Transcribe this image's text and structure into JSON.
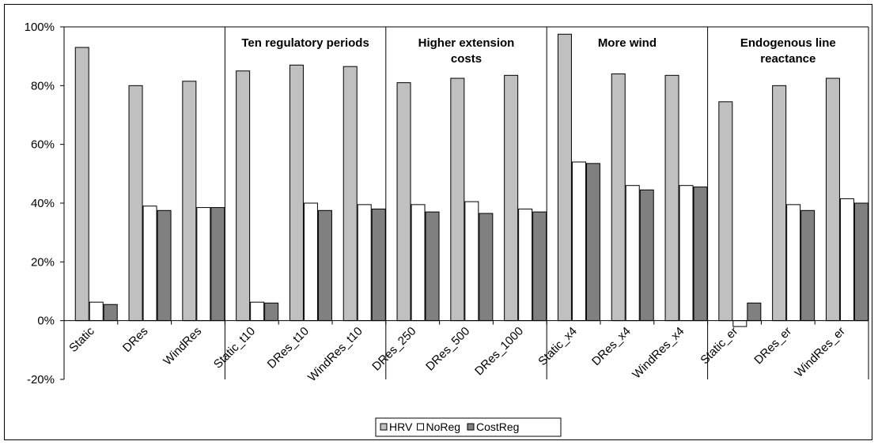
{
  "chart_data": {
    "type": "bar",
    "categories": [
      "Static",
      "DRes",
      "WindRes",
      "Static_t10",
      "DRes_t10",
      "WindRes_t10",
      "DRes_250",
      "DRes_500",
      "DRes_1000",
      "Static_x4",
      "DRes_x4",
      "WindRes_x4",
      "Static_er",
      "DRes_er",
      "WindRes_er"
    ],
    "series": [
      {
        "name": "HRV",
        "color": "#c0c0c0",
        "values": [
          93,
          80,
          81.5,
          85,
          87,
          86.5,
          81,
          82.5,
          83.5,
          97.5,
          84,
          83.5,
          74.5,
          80,
          82.5
        ]
      },
      {
        "name": "NoReg",
        "color": "#ffffff",
        "values": [
          6.3,
          39,
          38.5,
          6.3,
          40,
          39.5,
          39.5,
          40.5,
          38,
          54,
          46,
          46,
          -2,
          39.5,
          41.5
        ]
      },
      {
        "name": "CostReg",
        "color": "#808080",
        "values": [
          5.5,
          37.5,
          38.5,
          6,
          37.5,
          38,
          37,
          36.5,
          37,
          53.5,
          44.5,
          45.5,
          6,
          37.5,
          40
        ]
      }
    ],
    "ylim": [
      -20,
      100
    ],
    "yticks": [
      "-20%",
      "0%",
      "20%",
      "40%",
      "60%",
      "80%",
      "100%"
    ],
    "ytick_values": [
      -20,
      0,
      20,
      40,
      60,
      80,
      100
    ],
    "groups": [
      {
        "label_lines": [
          "",
          ""
        ],
        "start": 0,
        "end": 3
      },
      {
        "label_lines": [
          "Ten regulatory periods",
          ""
        ],
        "start": 3,
        "end": 6
      },
      {
        "label_lines": [
          "Higher extension",
          "costs"
        ],
        "start": 6,
        "end": 9
      },
      {
        "label_lines": [
          "More wind",
          ""
        ],
        "start": 9,
        "end": 12
      },
      {
        "label_lines": [
          "Endogenous line",
          "reactance"
        ],
        "start": 12,
        "end": 15
      }
    ],
    "legend_position": "bottom-center",
    "grid": false,
    "xlabel": "",
    "ylabel": "",
    "title": ""
  }
}
